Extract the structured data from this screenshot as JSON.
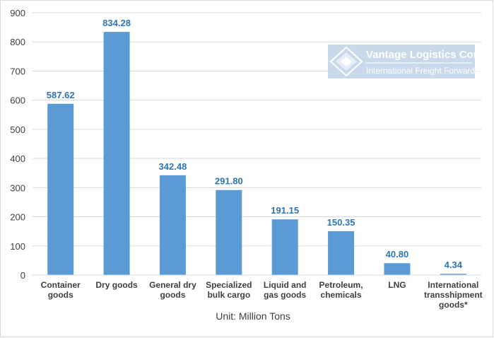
{
  "logo": {
    "name": "Vantage Logistics Corp.",
    "tagline": "International Freight Forwarders",
    "color": "#c9d8ea"
  },
  "chart_data": {
    "type": "bar",
    "categories": [
      [
        "Container",
        "goods"
      ],
      [
        "Dry goods"
      ],
      [
        "General dry",
        "goods"
      ],
      [
        "Specialized",
        "bulk cargo"
      ],
      [
        "Liquid and",
        "gas goods"
      ],
      [
        "Petroleum,",
        "chemicals"
      ],
      [
        "LNG"
      ],
      [
        "International",
        "transshipment",
        "goods*"
      ]
    ],
    "values": [
      587.62,
      834.28,
      342.48,
      291.8,
      191.15,
      150.35,
      40.8,
      4.34
    ],
    "value_labels": [
      "587.62",
      "834.28",
      "342.48",
      "291.80",
      "191.15",
      "150.35",
      "40.80",
      "4.34"
    ],
    "title": "",
    "xlabel": "Unit: Million Tons",
    "ylabel": "",
    "ylim": [
      0,
      900
    ],
    "yticks": [
      0,
      100,
      200,
      300,
      400,
      500,
      600,
      700,
      800,
      900
    ],
    "grid": true,
    "bar_color": "#5b9bd5",
    "label_color": "#2e75b6"
  }
}
